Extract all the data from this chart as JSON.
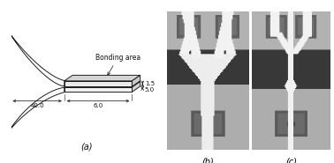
{
  "fig_width": 3.78,
  "fig_height": 1.85,
  "dpi": 100,
  "background_color": "#ffffff",
  "panel_a": {
    "label": "(a)",
    "bonding_area_label": "Bonding area",
    "dim_1": "1.5",
    "dim_2": "5.0",
    "dim_3": "6.0",
    "dim_4": "40.0",
    "line_color": "#111111"
  },
  "panel_b": {
    "label": "(b)"
  },
  "panel_c": {
    "label": "(c)"
  }
}
